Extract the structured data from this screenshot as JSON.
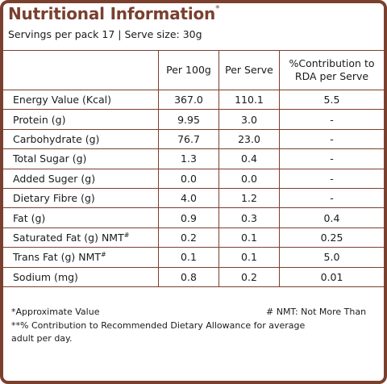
{
  "header": {
    "title": "Nutritional Information",
    "title_mark": "*",
    "servings": "Servings per pack 17 | Serve size: 30g"
  },
  "table": {
    "columns": [
      "",
      "Per 100g",
      "Per Serve",
      "%Contribution to RDA per Serve"
    ],
    "rows": [
      {
        "label": "Energy Value (Kcal)",
        "per100g": "367.0",
        "perServe": "110.1",
        "rda": "5.5"
      },
      {
        "label": "Protein (g)",
        "per100g": "9.95",
        "perServe": "3.0",
        "rda": "-"
      },
      {
        "label": "Carbohydrate (g)",
        "per100g": "76.7",
        "perServe": "23.0",
        "rda": "-"
      },
      {
        "label": "Total Sugar (g)",
        "per100g": "1.3",
        "perServe": "0.4",
        "rda": "-"
      },
      {
        "label": "Added Suger (g)",
        "per100g": "0.0",
        "perServe": "0.0",
        "rda": "-"
      },
      {
        "label": "Dietary Fibre (g)",
        "per100g": "4.0",
        "perServe": "1.2",
        "rda": "-"
      },
      {
        "label": "Fat (g)",
        "per100g": "0.9",
        "perServe": "0.3",
        "rda": "0.4"
      },
      {
        "label": "Saturated Fat (g) NMT",
        "mark": "#",
        "per100g": "0.2",
        "perServe": "0.1",
        "rda": "0.25"
      },
      {
        "label": "Trans Fat (g) NMT",
        "mark": "#",
        "per100g": "0.1",
        "perServe": "0.1",
        "rda": "5.0"
      },
      {
        "label": "Sodium (mg)",
        "per100g": "0.8",
        "perServe": "0.2",
        "rda": "0.01"
      }
    ]
  },
  "footnotes": {
    "approx": "*Approximate Value",
    "nmt": "# NMT: Not More Than",
    "rda_line1": "**% Contribution to Recommended Dietary Allowance for average",
    "rda_line2": "adult per day."
  },
  "colors": {
    "border": "#7b3f2e",
    "title": "#7b3f2e"
  }
}
